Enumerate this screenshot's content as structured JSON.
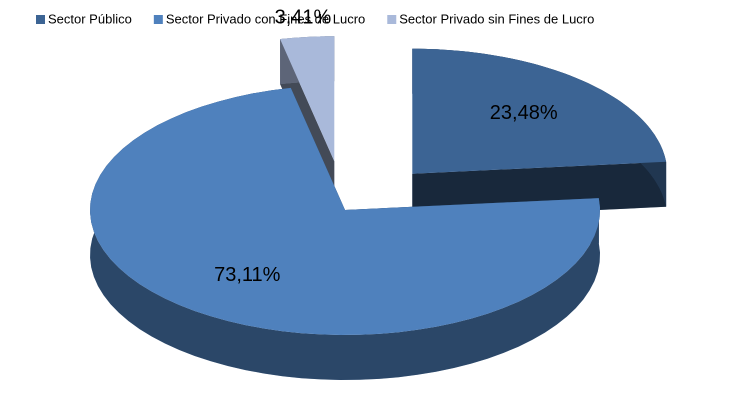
{
  "chart_data": {
    "type": "pie",
    "categories": [
      "Sector Público",
      "Sector Privado con Fines de Lucro",
      "Sector Privado sin Fines de Lucro"
    ],
    "values": [
      23.48,
      73.11,
      3.41
    ],
    "value_labels": [
      "23,48%",
      "73,11%",
      "3,41%"
    ],
    "colors": [
      "#3c6494",
      "#4f81bd",
      "#a9b9da"
    ],
    "legend": "top"
  }
}
